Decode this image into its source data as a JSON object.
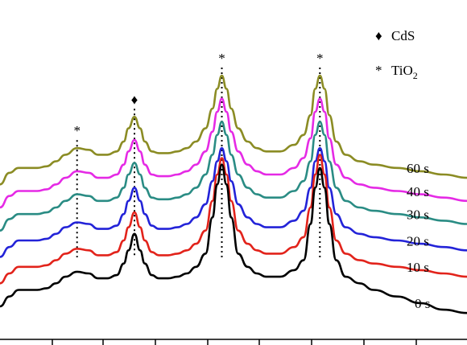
{
  "chart_data": {
    "type": "line",
    "title": "",
    "xlabel": "",
    "ylabel": "",
    "legend": {
      "placement": "top-right",
      "entries": [
        {
          "symbol": "diamond",
          "text": "CdS"
        },
        {
          "symbol": "asterisk",
          "text": "TiO",
          "subscript": "2"
        }
      ]
    },
    "peaks": [
      {
        "x": 0.165,
        "symbol": "asterisk",
        "phase": "TiO2"
      },
      {
        "x": 0.288,
        "symbol": "diamond",
        "phase": "CdS"
      },
      {
        "x": 0.475,
        "symbol": "asterisk",
        "phase": "TiO2"
      },
      {
        "x": 0.685,
        "symbol": "asterisk",
        "phase": "TiO2"
      }
    ],
    "x": [
      0.0,
      0.02,
      0.04,
      0.06,
      0.08,
      0.1,
      0.12,
      0.14,
      0.165,
      0.19,
      0.21,
      0.23,
      0.25,
      0.265,
      0.275,
      0.288,
      0.3,
      0.31,
      0.325,
      0.34,
      0.36,
      0.38,
      0.4,
      0.42,
      0.44,
      0.455,
      0.465,
      0.475,
      0.485,
      0.495,
      0.51,
      0.53,
      0.55,
      0.57,
      0.6,
      0.63,
      0.65,
      0.665,
      0.675,
      0.685,
      0.695,
      0.705,
      0.72,
      0.74,
      0.77,
      0.8,
      0.85,
      0.9,
      0.95,
      1.0
    ],
    "series": [
      {
        "name": "60 s",
        "color": "#8b8c24",
        "values": [
          0.47,
          0.505,
          0.52,
          0.52,
          0.52,
          0.525,
          0.54,
          0.56,
          0.58,
          0.575,
          0.56,
          0.56,
          0.57,
          0.6,
          0.64,
          0.675,
          0.64,
          0.6,
          0.57,
          0.565,
          0.565,
          0.57,
          0.58,
          0.6,
          0.64,
          0.7,
          0.76,
          0.8,
          0.76,
          0.7,
          0.64,
          0.6,
          0.58,
          0.57,
          0.57,
          0.59,
          0.62,
          0.68,
          0.76,
          0.8,
          0.76,
          0.68,
          0.6,
          0.56,
          0.54,
          0.53,
          0.52,
          0.51,
          0.5,
          0.49
        ]
      },
      {
        "name": "40 s",
        "color": "#e52ae5",
        "values": [
          0.4,
          0.435,
          0.45,
          0.45,
          0.45,
          0.455,
          0.47,
          0.49,
          0.51,
          0.505,
          0.49,
          0.49,
          0.5,
          0.53,
          0.57,
          0.605,
          0.57,
          0.53,
          0.5,
          0.495,
          0.495,
          0.5,
          0.51,
          0.53,
          0.57,
          0.63,
          0.69,
          0.73,
          0.69,
          0.63,
          0.57,
          0.53,
          0.51,
          0.5,
          0.5,
          0.52,
          0.55,
          0.61,
          0.69,
          0.73,
          0.69,
          0.61,
          0.53,
          0.49,
          0.47,
          0.46,
          0.45,
          0.44,
          0.43,
          0.42
        ]
      },
      {
        "name": "30 s",
        "color": "#2a8c84",
        "values": [
          0.33,
          0.365,
          0.38,
          0.38,
          0.38,
          0.385,
          0.4,
          0.42,
          0.44,
          0.435,
          0.42,
          0.42,
          0.43,
          0.46,
          0.5,
          0.535,
          0.5,
          0.46,
          0.43,
          0.425,
          0.425,
          0.43,
          0.44,
          0.46,
          0.5,
          0.56,
          0.62,
          0.66,
          0.62,
          0.56,
          0.5,
          0.46,
          0.44,
          0.43,
          0.43,
          0.45,
          0.48,
          0.54,
          0.62,
          0.66,
          0.62,
          0.54,
          0.46,
          0.42,
          0.4,
          0.39,
          0.38,
          0.37,
          0.36,
          0.35
        ]
      },
      {
        "name": "20 s",
        "color": "#2323d8",
        "values": [
          0.25,
          0.28,
          0.3,
          0.3,
          0.3,
          0.305,
          0.32,
          0.34,
          0.355,
          0.35,
          0.335,
          0.335,
          0.345,
          0.38,
          0.42,
          0.46,
          0.42,
          0.38,
          0.345,
          0.335,
          0.335,
          0.34,
          0.35,
          0.37,
          0.41,
          0.48,
          0.54,
          0.58,
          0.54,
          0.48,
          0.41,
          0.37,
          0.35,
          0.34,
          0.34,
          0.36,
          0.39,
          0.46,
          0.54,
          0.58,
          0.54,
          0.46,
          0.38,
          0.34,
          0.32,
          0.31,
          0.3,
          0.29,
          0.28,
          0.27
        ]
      },
      {
        "name": "10 s",
        "color": "#e2231b",
        "values": [
          0.17,
          0.2,
          0.22,
          0.22,
          0.22,
          0.225,
          0.24,
          0.26,
          0.275,
          0.27,
          0.255,
          0.255,
          0.265,
          0.3,
          0.34,
          0.385,
          0.34,
          0.3,
          0.265,
          0.255,
          0.255,
          0.26,
          0.27,
          0.29,
          0.33,
          0.42,
          0.5,
          0.55,
          0.5,
          0.42,
          0.33,
          0.29,
          0.27,
          0.26,
          0.26,
          0.28,
          0.31,
          0.4,
          0.5,
          0.56,
          0.5,
          0.4,
          0.3,
          0.26,
          0.24,
          0.23,
          0.22,
          0.21,
          0.2,
          0.19
        ]
      },
      {
        "name": "0 s",
        "color": "#000000",
        "values": [
          0.1,
          0.13,
          0.15,
          0.15,
          0.15,
          0.155,
          0.17,
          0.19,
          0.205,
          0.2,
          0.185,
          0.185,
          0.195,
          0.23,
          0.27,
          0.32,
          0.27,
          0.23,
          0.195,
          0.185,
          0.185,
          0.19,
          0.2,
          0.22,
          0.26,
          0.37,
          0.47,
          0.53,
          0.47,
          0.37,
          0.26,
          0.22,
          0.2,
          0.19,
          0.19,
          0.21,
          0.24,
          0.35,
          0.46,
          0.52,
          0.46,
          0.35,
          0.24,
          0.19,
          0.17,
          0.15,
          0.13,
          0.11,
          0.09,
          0.08
        ]
      }
    ],
    "grid": false
  }
}
